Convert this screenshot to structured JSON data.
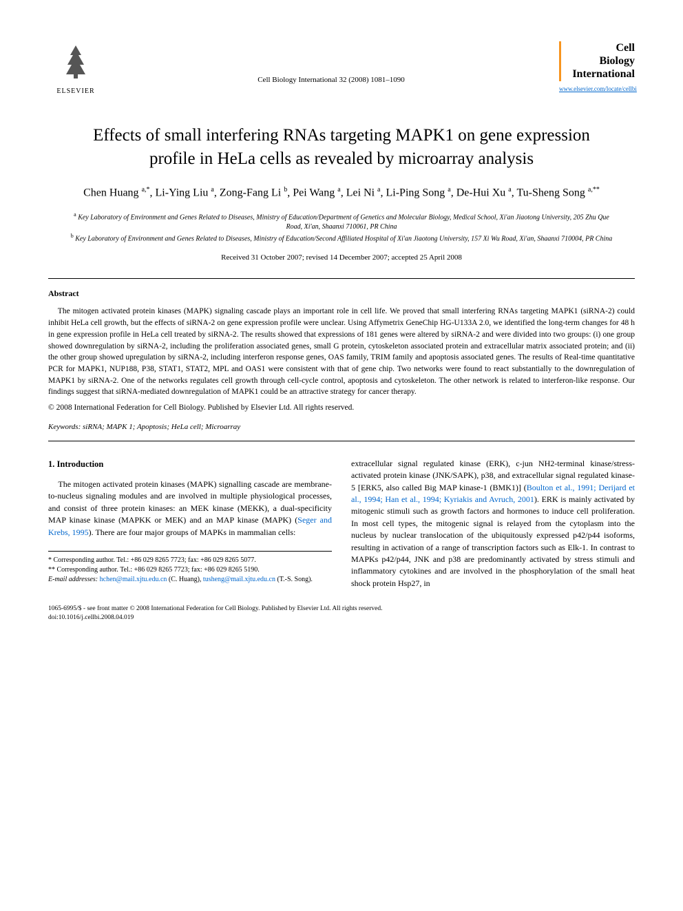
{
  "header": {
    "publisher_name": "ELSEVIER",
    "journal_ref": "Cell Biology International 32 (2008) 1081–1090",
    "journal_logo_lines": [
      "Cell",
      "Biology",
      "International"
    ],
    "journal_url": "www.elsevier.com/locate/cellbi"
  },
  "title": "Effects of small interfering RNAs targeting MAPK1 on gene expression profile in HeLa cells as revealed by microarray analysis",
  "authors_html": "Chen Huang <sup>a,*</sup>, Li-Ying Liu <sup>a</sup>, Zong-Fang Li <sup>b</sup>, Pei Wang <sup>a</sup>, Lei Ni <sup>a</sup>, Li-Ping Song <sup>a</sup>, De-Hui Xu <sup>a</sup>, Tu-Sheng Song <sup>a,**</sup>",
  "affiliations": [
    {
      "sup": "a",
      "text": "Key Laboratory of Environment and Genes Related to Diseases, Ministry of Education/Department of Genetics and Molecular Biology, Medical School, Xi'an Jiaotong University, 205 Zhu Que Road, Xi'an, Shaanxi 710061, PR China"
    },
    {
      "sup": "b",
      "text": "Key Laboratory of Environment and Genes Related to Diseases, Ministry of Education/Second Affiliated Hospital of Xi'an Jiaotong University, 157 Xi Wu Road, Xi'an, Shaanxi 710004, PR China"
    }
  ],
  "dates": "Received 31 October 2007; revised 14 December 2007; accepted 25 April 2008",
  "abstract": {
    "heading": "Abstract",
    "text": "The mitogen activated protein kinases (MAPK) signaling cascade plays an important role in cell life. We proved that small interfering RNAs targeting MAPK1 (siRNA-2) could inhibit HeLa cell growth, but the effects of siRNA-2 on gene expression profile were unclear. Using Affymetrix GeneChip HG-U133A 2.0, we identified the long-term changes for 48 h in gene expression profile in HeLa cell treated by siRNA-2. The results showed that expressions of 181 genes were altered by siRNA-2 and were divided into two groups: (i) one group showed downregulation by siRNA-2, including the proliferation associated genes, small G protein, cytoskeleton associated protein and extracellular matrix associated protein; and (ii) the other group showed upregulation by siRNA-2, including interferon response genes, OAS family, TRIM family and apoptosis associated genes. The results of Real-time quantitative PCR for MAPK1, NUP188, P38, STAT1, STAT2, MPL and OAS1 were consistent with that of gene chip. Two networks were found to react substantially to the downregulation of MAPK1 by siRNA-2. One of the networks regulates cell growth through cell-cycle control, apoptosis and cytoskeleton. The other network is related to interferon-like response. Our findings suggest that siRNA-mediated downregulation of MAPK1 could be an attractive strategy for cancer therapy.",
    "copyright": "© 2008 International Federation for Cell Biology. Published by Elsevier Ltd. All rights reserved."
  },
  "keywords": {
    "label": "Keywords:",
    "text": "siRNA; MAPK 1; Apoptosis; HeLa cell; Microarray"
  },
  "intro": {
    "heading": "1. Introduction",
    "col1_p1_pre": "The mitogen activated protein kinases (MAPK) signalling cascade are membrane-to-nucleus signaling modules and are involved in multiple physiological processes, and consist of three protein kinases: an MEK kinase (MEKK), a dual-specificity MAP kinase kinase (MAPKK or MEK) and an MAP kinase (MAPK) (",
    "col1_cite1": "Seger and Krebs, 1995",
    "col1_p1_post": "). There are four major groups of MAPKs in mammalian cells:",
    "col2_p1_pre": "extracellular signal regulated kinase (ERK), c-jun NH2-terminal kinase/stress-activated protein kinase (JNK/SAPK), p38, and extracellular signal regulated kinase-5 [ERK5, also called Big MAP kinase-1 (BMK1)] (",
    "col2_cite1": "Boulton et al., 1991; Derijard et al., 1994; Han et al., 1994; Kyriakis and Avruch, 2001",
    "col2_p1_post": "). ERK is mainly activated by mitogenic stimuli such as growth factors and hormones to induce cell proliferation. In most cell types, the mitogenic signal is relayed from the cytoplasm into the nucleus by nuclear translocation of the ubiquitously expressed p42/p44 isoforms, resulting in activation of a range of transcription factors such as Elk-1. In contrast to MAPKs p42/p44, JNK and p38 are predominantly activated by stress stimuli and inflammatory cytokines and are involved in the phosphorylation of the small heat shock protein Hsp27, in"
  },
  "footnotes": {
    "corr1": "* Corresponding author. Tel.: +86 029 8265 7723; fax: +86 029 8265 5077.",
    "corr2": "** Corresponding author. Tel.: +86 029 8265 7723; fax: +86 029 8265 5190.",
    "email_label": "E-mail addresses:",
    "email1": "hchen@mail.xjtu.edu.cn",
    "email1_person": " (C. Huang), ",
    "email2": "tusheng@mail.xjtu.edu.cn",
    "email2_person": " (T.-S. Song)."
  },
  "footer": {
    "line1": "1065-6995/$ - see front matter © 2008 International Federation for Cell Biology. Published by Elsevier Ltd. All rights reserved.",
    "line2": "doi:10.1016/j.cellbi.2008.04.019"
  }
}
